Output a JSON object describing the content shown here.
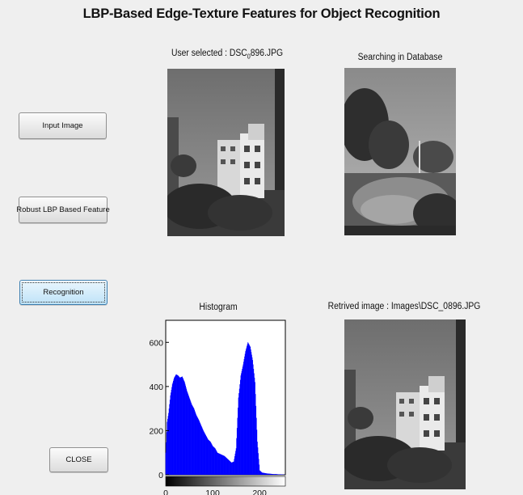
{
  "window": {
    "title": "LBP-Based Edge-Texture Features for Object Recognition"
  },
  "buttons": {
    "input_image": "Input Image",
    "robust_lbp": "Robust LBP Based Feature",
    "recognition": "Recognition",
    "close": "CLOSE"
  },
  "panels": {
    "user_selected_prefix": "User selected : DSC",
    "user_selected_subscript": "0",
    "user_selected_suffix": "896.JPG",
    "searching": "Searching in Database",
    "histogram_title": "Histogram",
    "retrieved": "Retrived image : Images\\DSC_0896.JPG"
  },
  "chart_data": {
    "type": "area",
    "title": "Histogram",
    "xlabel": "",
    "ylabel": "",
    "xlim": [
      0,
      255
    ],
    "ylim": [
      0,
      700
    ],
    "x_ticks": [
      0,
      100,
      200
    ],
    "y_ticks": [
      0,
      200,
      400,
      600
    ],
    "color": "#0000ff",
    "series": [
      {
        "x": [
          0,
          3,
          6,
          10,
          14,
          18,
          22,
          26,
          30,
          35,
          40,
          45,
          50,
          55,
          60,
          65,
          70,
          75,
          80,
          85,
          90,
          95,
          100,
          105,
          110,
          115,
          120,
          125,
          130,
          135,
          140,
          145,
          150,
          155,
          160,
          165,
          170,
          175,
          180,
          185,
          190,
          195,
          200,
          205,
          210,
          215,
          220,
          225,
          230,
          235,
          240,
          245,
          250,
          255
        ],
        "values": [
          100,
          240,
          280,
          360,
          410,
          440,
          455,
          450,
          440,
          445,
          420,
          380,
          350,
          320,
          300,
          270,
          250,
          225,
          200,
          180,
          160,
          150,
          130,
          120,
          100,
          95,
          90,
          85,
          75,
          65,
          55,
          60,
          120,
          350,
          450,
          500,
          560,
          600,
          580,
          520,
          420,
          150,
          20,
          10,
          8,
          6,
          5,
          4,
          3,
          3,
          2,
          2,
          1,
          0
        ]
      }
    ]
  }
}
